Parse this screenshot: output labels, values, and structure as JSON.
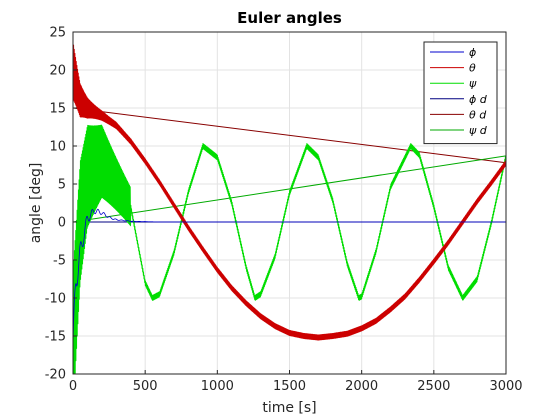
{
  "chart_data": {
    "type": "line",
    "title": "Euler angles",
    "xlabel": "time [s]",
    "ylabel": "angle [deg]",
    "xlim": [
      0,
      3000
    ],
    "ylim": [
      -20,
      25
    ],
    "xticks": [
      "0",
      "500",
      "1000",
      "1500",
      "2000",
      "2500",
      "3000"
    ],
    "yticks": [
      "-20",
      "-15",
      "-10",
      "-5",
      "0",
      "5",
      "10",
      "15",
      "20",
      "25"
    ],
    "grid": true,
    "legend_position": "top-right",
    "series": [
      {
        "name": "ϕ",
        "color": "#0000cc",
        "style": "damped-oscillation",
        "x": [
          0,
          20,
          50,
          100,
          150,
          200,
          250,
          300,
          400,
          500,
          600,
          3000
        ],
        "y": [
          -16,
          -8,
          -4,
          0.5,
          1.5,
          1.2,
          0.6,
          0.3,
          0.1,
          0.05,
          0,
          0
        ]
      },
      {
        "name": "θ",
        "color": "#cc0000",
        "style": "noisy-line",
        "x": [
          0,
          50,
          100,
          200,
          300,
          400,
          500,
          600,
          700,
          800,
          900,
          1000,
          1100,
          1200,
          1300,
          1400,
          1500,
          1600,
          1700,
          1800,
          1900,
          2000,
          2100,
          2200,
          2300,
          2400,
          2500,
          2600,
          2700,
          2800,
          2900,
          3000
        ],
        "y": [
          20,
          16,
          15,
          14,
          12.7,
          10.6,
          8,
          5.2,
          2.2,
          -0.8,
          -3.6,
          -6.3,
          -8.7,
          -10.7,
          -12.4,
          -13.7,
          -14.6,
          -15,
          -15.2,
          -15,
          -14.7,
          -14,
          -13,
          -11.5,
          -9.8,
          -7.6,
          -5.2,
          -2.7,
          0,
          2.7,
          5.2,
          7.8
        ]
      },
      {
        "name": "ψ",
        "color": "#00dd00",
        "style": "noisy-sine",
        "x": [
          0,
          50,
          100,
          200,
          300,
          400,
          500,
          550,
          600,
          700,
          800,
          900,
          1000,
          1100,
          1200,
          1260,
          1300,
          1400,
          1500,
          1620,
          1700,
          1800,
          1900,
          1980,
          2000,
          2100,
          2200,
          2340,
          2400,
          2500,
          2600,
          2700,
          2800,
          2900,
          3000
        ],
        "y": [
          -16,
          0,
          6,
          8,
          5,
          2,
          -8,
          -10,
          -9.5,
          -4,
          4,
          10,
          8.5,
          2.5,
          -6,
          -10,
          -9.5,
          -4.5,
          3.8,
          10,
          8.5,
          2.8,
          -5.5,
          -10,
          -9.8,
          -3.8,
          4.6,
          10,
          8.8,
          2,
          -6,
          -10,
          -7.5,
          0,
          8.7
        ]
      },
      {
        "name": "ϕ d",
        "color": "#000080",
        "style": "line",
        "x": [
          0,
          3000
        ],
        "y": [
          0,
          0
        ]
      },
      {
        "name": "θ d",
        "color": "#880000",
        "style": "line",
        "x": [
          0,
          3000
        ],
        "y": [
          15,
          7.8
        ]
      },
      {
        "name": "ψ d",
        "color": "#00aa00",
        "style": "line",
        "x": [
          0,
          3000
        ],
        "y": [
          0,
          8.7
        ]
      }
    ]
  }
}
